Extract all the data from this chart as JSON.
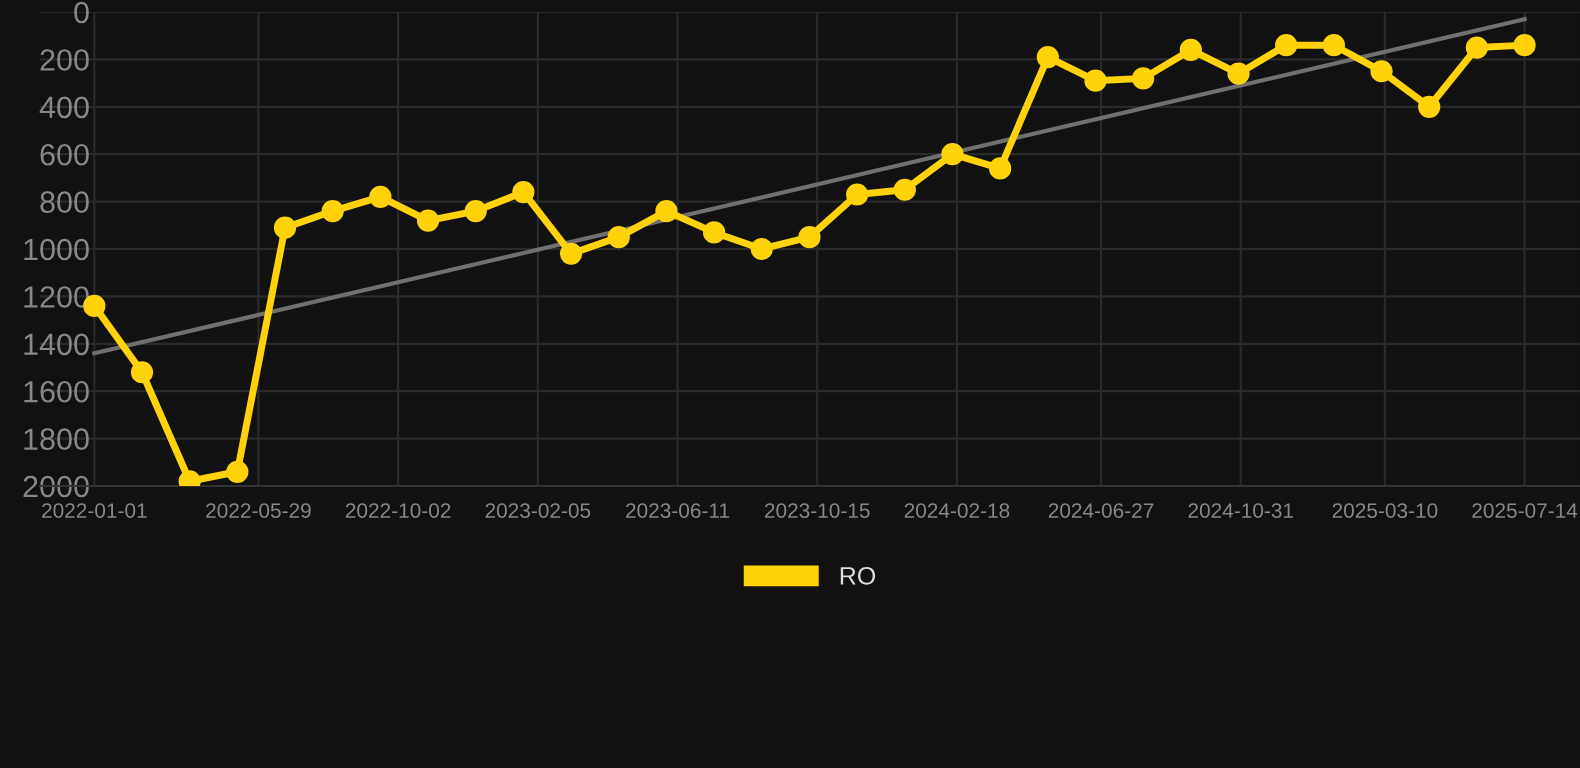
{
  "chart_data": {
    "type": "line",
    "x": [
      "2022-01-01",
      "2022-02-13",
      "2022-03-28",
      "2022-05-10",
      "2022-06-22",
      "2022-08-04",
      "2022-09-16",
      "2022-10-29",
      "2022-12-11",
      "2023-01-23",
      "2023-03-07",
      "2023-04-19",
      "2023-06-01",
      "2023-07-14",
      "2023-08-26",
      "2023-10-08",
      "2023-11-20",
      "2024-01-02",
      "2024-02-14",
      "2024-03-28",
      "2024-05-10",
      "2024-06-22",
      "2024-08-04",
      "2024-09-16",
      "2024-10-29",
      "2024-12-11",
      "2025-01-23",
      "2025-03-07",
      "2025-04-19",
      "2025-06-01",
      "2025-07-14"
    ],
    "series": [
      {
        "name": "RO",
        "color": "#ffd20a",
        "marker": "circle",
        "values": [
          1240,
          1520,
          1980,
          1940,
          910,
          840,
          780,
          880,
          840,
          760,
          1020,
          950,
          840,
          930,
          1000,
          950,
          770,
          750,
          600,
          660,
          190,
          290,
          280,
          160,
          260,
          140,
          140,
          250,
          400,
          150,
          140
        ]
      },
      {
        "type": "line",
        "color": "#707070",
        "marker": "none",
        "x": [
          "2022-01-01",
          "2025-07-14"
        ],
        "values": [
          1440,
          30
        ]
      }
    ],
    "ylim": [
      2000,
      0
    ],
    "yticks": [
      0,
      200,
      400,
      600,
      800,
      1000,
      1200,
      1400,
      1600,
      1800,
      2000
    ],
    "xlim": [
      "2021-11-13",
      "2025-09-02"
    ],
    "xticks": [
      {
        "value": "2022-01-01",
        "label": "2022-01-01"
      },
      {
        "value": "2022-05-29",
        "label": "2022-05-29"
      },
      {
        "value": "2022-10-02",
        "label": "2022-10-02"
      },
      {
        "value": "2023-02-05",
        "label": "2023-02-05"
      },
      {
        "value": "2023-06-11",
        "label": "2023-06-11"
      },
      {
        "value": "2023-10-15",
        "label": "2023-10-15"
      },
      {
        "value": "2024-02-18",
        "label": "2024-02-18"
      },
      {
        "value": "2024-06-27",
        "label": "2024-06-27"
      },
      {
        "value": "2024-10-31",
        "label": "2024-10-31"
      },
      {
        "value": "2025-03-10",
        "label": "2025-03-10"
      },
      {
        "value": "2025-07-14",
        "label": "2025-07-14"
      }
    ],
    "grid": true,
    "legend": "bottom"
  }
}
